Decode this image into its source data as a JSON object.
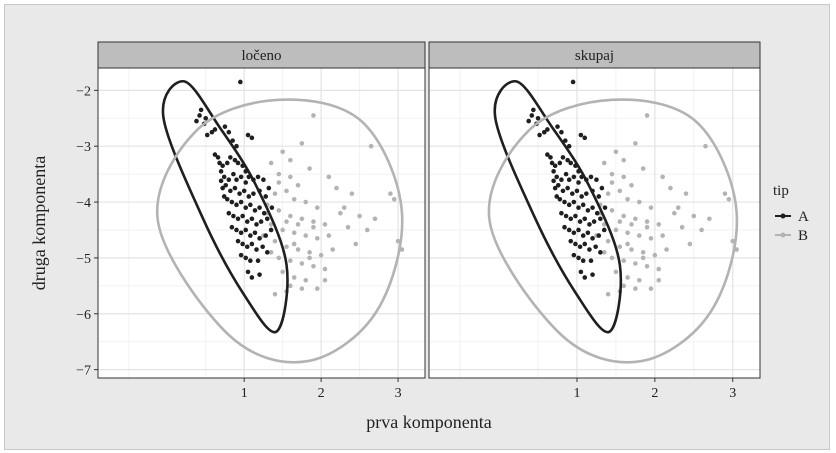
{
  "chart_data": {
    "type": "scatter",
    "title": "",
    "xlabel": "prva komponenta",
    "ylabel": "druga komponenta",
    "facets": [
      "ločeno",
      "skupaj"
    ],
    "xlim": [
      -0.9,
      3.35
    ],
    "ylim": [
      -7.15,
      -1.6
    ],
    "x_ticks": [
      1,
      2,
      3
    ],
    "y_ticks": [
      -2,
      -3,
      -4,
      -5,
      -6,
      -7
    ],
    "grid": true,
    "legend": {
      "title": "tip",
      "position": "right",
      "entries": [
        "A",
        "B"
      ]
    },
    "series": [
      {
        "name": "A",
        "color": "#1f1f1f",
        "points": [
          [
            0.95,
            -1.85
          ],
          [
            0.44,
            -2.35
          ],
          [
            0.42,
            -2.45
          ],
          [
            0.38,
            -2.55
          ],
          [
            0.5,
            -2.5
          ],
          [
            0.48,
            -2.6
          ],
          [
            0.52,
            -2.8
          ],
          [
            0.58,
            -2.75
          ],
          [
            0.62,
            -2.7
          ],
          [
            0.75,
            -2.65
          ],
          [
            0.8,
            -2.75
          ],
          [
            1.05,
            -2.8
          ],
          [
            1.1,
            -2.85
          ],
          [
            0.85,
            -2.9
          ],
          [
            0.9,
            -3.0
          ],
          [
            0.62,
            -3.15
          ],
          [
            0.66,
            -3.2
          ],
          [
            0.68,
            -3.3
          ],
          [
            0.72,
            -3.35
          ],
          [
            0.78,
            -3.3
          ],
          [
            0.82,
            -3.2
          ],
          [
            0.88,
            -3.25
          ],
          [
            0.92,
            -3.3
          ],
          [
            0.98,
            -3.35
          ],
          [
            1.02,
            -3.45
          ],
          [
            0.7,
            -3.45
          ],
          [
            0.74,
            -3.55
          ],
          [
            0.8,
            -3.6
          ],
          [
            0.86,
            -3.5
          ],
          [
            0.9,
            -3.6
          ],
          [
            0.96,
            -3.55
          ],
          [
            1.02,
            -3.65
          ],
          [
            1.06,
            -3.55
          ],
          [
            1.12,
            -3.6
          ],
          [
            1.18,
            -3.55
          ],
          [
            1.25,
            -3.6
          ],
          [
            0.76,
            -3.7
          ],
          [
            0.82,
            -3.8
          ],
          [
            0.88,
            -3.75
          ],
          [
            0.94,
            -3.85
          ],
          [
            1.0,
            -3.8
          ],
          [
            1.06,
            -3.9
          ],
          [
            1.12,
            -3.85
          ],
          [
            1.2,
            -3.8
          ],
          [
            1.28,
            -3.9
          ],
          [
            0.78,
            -3.95
          ],
          [
            0.84,
            -4.0
          ],
          [
            0.9,
            -4.05
          ],
          [
            0.96,
            -4.0
          ],
          [
            1.02,
            -4.1
          ],
          [
            1.08,
            -4.05
          ],
          [
            1.14,
            -4.15
          ],
          [
            1.2,
            -4.1
          ],
          [
            1.26,
            -4.2
          ],
          [
            0.8,
            -4.2
          ],
          [
            0.86,
            -4.25
          ],
          [
            0.92,
            -4.3
          ],
          [
            0.98,
            -4.25
          ],
          [
            1.04,
            -4.35
          ],
          [
            1.1,
            -4.3
          ],
          [
            1.16,
            -4.4
          ],
          [
            1.22,
            -4.35
          ],
          [
            1.3,
            -4.3
          ],
          [
            0.84,
            -4.45
          ],
          [
            0.9,
            -4.5
          ],
          [
            0.96,
            -4.55
          ],
          [
            1.02,
            -4.5
          ],
          [
            1.08,
            -4.6
          ],
          [
            1.14,
            -4.55
          ],
          [
            1.2,
            -4.65
          ],
          [
            1.28,
            -4.6
          ],
          [
            0.92,
            -4.7
          ],
          [
            0.98,
            -4.75
          ],
          [
            1.04,
            -4.8
          ],
          [
            1.1,
            -4.75
          ],
          [
            1.16,
            -4.85
          ],
          [
            1.24,
            -4.8
          ],
          [
            0.96,
            -4.95
          ],
          [
            1.02,
            -5.0
          ],
          [
            1.08,
            -5.05
          ],
          [
            1.18,
            -5.05
          ],
          [
            1.05,
            -5.25
          ],
          [
            1.1,
            -5.35
          ],
          [
            1.2,
            -5.3
          ],
          [
            1.3,
            -4.9
          ],
          [
            1.35,
            -4.5
          ],
          [
            1.36,
            -4.1
          ],
          [
            1.32,
            -3.75
          ],
          [
            0.72,
            -3.75
          ],
          [
            0.74,
            -3.9
          ],
          [
            0.7,
            -3.62
          ]
        ]
      },
      {
        "name": "B",
        "color": "#b3b3b3",
        "points": [
          [
            1.9,
            -2.45
          ],
          [
            2.65,
            -3.0
          ],
          [
            1.75,
            -2.95
          ],
          [
            1.5,
            -3.1
          ],
          [
            1.6,
            -3.25
          ],
          [
            1.35,
            -3.3
          ],
          [
            1.45,
            -3.5
          ],
          [
            1.85,
            -3.4
          ],
          [
            2.1,
            -3.55
          ],
          [
            2.2,
            -3.75
          ],
          [
            1.7,
            -3.7
          ],
          [
            1.55,
            -3.8
          ],
          [
            1.4,
            -3.85
          ],
          [
            1.65,
            -3.95
          ],
          [
            1.8,
            -4.0
          ],
          [
            1.95,
            -4.1
          ],
          [
            2.25,
            -4.2
          ],
          [
            2.5,
            -4.25
          ],
          [
            2.9,
            -3.85
          ],
          [
            2.95,
            -3.95
          ],
          [
            1.3,
            -4.05
          ],
          [
            1.45,
            -4.15
          ],
          [
            1.6,
            -4.25
          ],
          [
            1.75,
            -4.3
          ],
          [
            1.9,
            -4.35
          ],
          [
            2.05,
            -4.4
          ],
          [
            2.35,
            -4.45
          ],
          [
            2.6,
            -4.5
          ],
          [
            1.35,
            -4.4
          ],
          [
            1.5,
            -4.5
          ],
          [
            1.65,
            -4.55
          ],
          [
            1.8,
            -4.6
          ],
          [
            1.95,
            -4.65
          ],
          [
            2.1,
            -4.6
          ],
          [
            2.45,
            -4.75
          ],
          [
            3.0,
            -4.7
          ],
          [
            3.05,
            -4.85
          ],
          [
            1.4,
            -4.7
          ],
          [
            1.55,
            -4.8
          ],
          [
            1.7,
            -4.85
          ],
          [
            1.85,
            -4.9
          ],
          [
            2.0,
            -4.95
          ],
          [
            1.45,
            -5.0
          ],
          [
            1.6,
            -5.05
          ],
          [
            1.75,
            -5.1
          ],
          [
            1.9,
            -5.15
          ],
          [
            2.05,
            -5.2
          ],
          [
            1.5,
            -5.25
          ],
          [
            1.65,
            -5.35
          ],
          [
            1.8,
            -5.4
          ],
          [
            2.05,
            -5.4
          ],
          [
            1.6,
            -5.5
          ],
          [
            1.75,
            -5.55
          ],
          [
            1.95,
            -5.55
          ],
          [
            1.4,
            -5.65
          ],
          [
            1.55,
            -5.6
          ],
          [
            1.3,
            -4.2
          ],
          [
            1.25,
            -4.6
          ],
          [
            1.35,
            -4.9
          ],
          [
            1.7,
            -4.4
          ],
          [
            2.15,
            -4.85
          ],
          [
            1.9,
            -4.45
          ],
          [
            2.3,
            -4.1
          ],
          [
            1.55,
            -4.35
          ],
          [
            1.45,
            -3.65
          ],
          [
            1.6,
            -3.55
          ],
          [
            2.4,
            -3.85
          ],
          [
            1.85,
            -5.0
          ],
          [
            2.7,
            -4.3
          ],
          [
            1.65,
            -4.75
          ]
        ]
      }
    ],
    "ellipses": [
      {
        "facet": "ločeno",
        "series": "A",
        "points": [
          [
            0.22,
            -1.84
          ],
          [
            0.68,
            -2.66
          ],
          [
            1.16,
            -3.72
          ],
          [
            1.55,
            -5.12
          ],
          [
            1.42,
            -6.32
          ],
          [
            0.98,
            -5.62
          ],
          [
            0.46,
            -4.28
          ],
          [
            -0.05,
            -2.48
          ]
        ]
      },
      {
        "facet": "ločeno",
        "series": "B",
        "points": [
          [
            1.45,
            -2.17
          ],
          [
            2.53,
            -2.56
          ],
          [
            3.05,
            -4.18
          ],
          [
            2.72,
            -5.96
          ],
          [
            1.82,
            -6.85
          ],
          [
            0.8,
            -6.38
          ],
          [
            -0.12,
            -4.35
          ],
          [
            0.38,
            -2.72
          ]
        ]
      },
      {
        "facet": "skupaj",
        "series": "A",
        "points": [
          [
            0.22,
            -1.84
          ],
          [
            0.68,
            -2.66
          ],
          [
            1.16,
            -3.72
          ],
          [
            1.55,
            -5.12
          ],
          [
            1.42,
            -6.32
          ],
          [
            0.98,
            -5.62
          ],
          [
            0.46,
            -4.28
          ],
          [
            -0.05,
            -2.48
          ]
        ]
      },
      {
        "facet": "skupaj",
        "series": "B",
        "points": [
          [
            1.45,
            -2.17
          ],
          [
            2.53,
            -2.56
          ],
          [
            3.05,
            -4.18
          ],
          [
            2.72,
            -5.96
          ],
          [
            1.82,
            -6.85
          ],
          [
            0.8,
            -6.38
          ],
          [
            -0.12,
            -4.35
          ],
          [
            0.38,
            -2.72
          ]
        ]
      }
    ]
  }
}
